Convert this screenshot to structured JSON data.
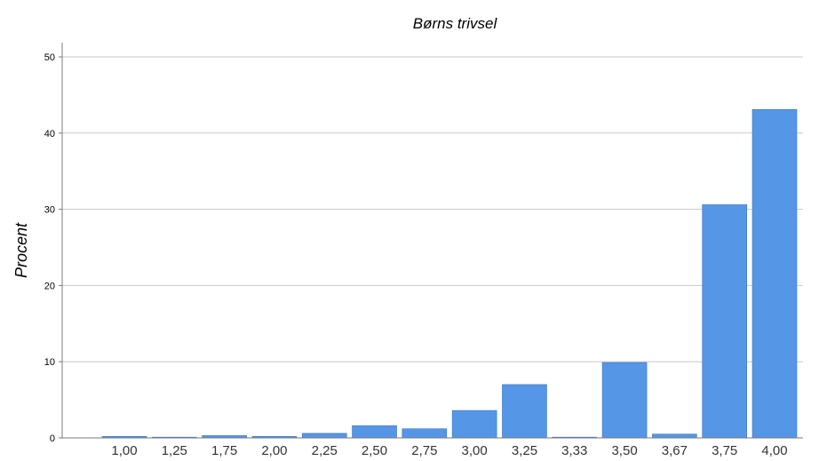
{
  "chart_data": {
    "type": "bar",
    "title": "Børns trivsel",
    "xlabel": "",
    "ylabel": "Procent",
    "categories": [
      "1,00",
      "1,25",
      "1,75",
      "2,00",
      "2,25",
      "2,50",
      "2,75",
      "3,00",
      "3,25",
      "3,33",
      "3,50",
      "3,67",
      "3,75",
      "4,00"
    ],
    "values": [
      0.2,
      0.1,
      0.3,
      0.2,
      0.6,
      1.6,
      1.2,
      3.6,
      7.0,
      0.1,
      9.9,
      0.5,
      30.6,
      43.1
    ],
    "ylim": [
      0,
      50
    ],
    "yticks": [
      0,
      10,
      20,
      30,
      40,
      50
    ],
    "grid": true,
    "bar_color": "#5596e6"
  }
}
